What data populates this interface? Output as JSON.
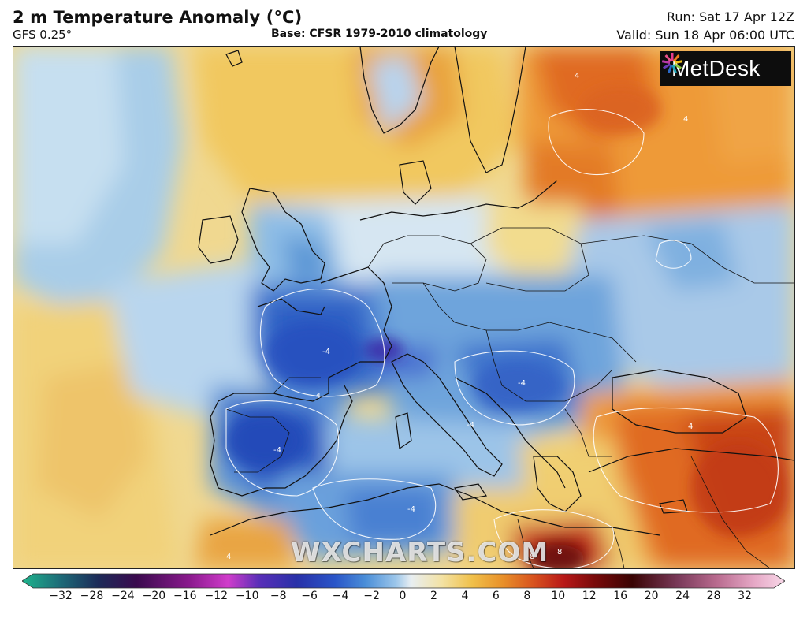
{
  "header": {
    "title": "2 m Temperature Anomaly (°C)",
    "model": "GFS 0.25°",
    "base": "Base: CFSR 1979-2010 climatology",
    "run": "Run: Sat 17 Apr 12Z",
    "valid": "Valid: Sun 18 Apr 06:00 UTC"
  },
  "logo": {
    "text": "MetDesk",
    "icon": "metdesk-sunburst-icon"
  },
  "watermark": "WXCHARTS.COM",
  "colorbar": {
    "ticks": [
      "−32",
      "−28",
      "−24",
      "−20",
      "−16",
      "−12",
      "−10",
      "−8",
      "−6",
      "−4",
      "−2",
      "0",
      "2",
      "4",
      "6",
      "8",
      "10",
      "12",
      "16",
      "20",
      "24",
      "28",
      "32"
    ],
    "colors": [
      "#1fb58d",
      "#1d6b78",
      "#1c2a58",
      "#3a0a4e",
      "#8b1a8e",
      "#d03ccb",
      "#5a2fb8",
      "#2830a8",
      "#2a55c8",
      "#4a8ed8",
      "#9cc6ea",
      "#e8eef2",
      "#f3e2a4",
      "#f0c04a",
      "#e8902a",
      "#d8531e",
      "#b81818",
      "#7a0a0a",
      "#3a0404",
      "#7a3a5a",
      "#b86a8e",
      "#e6a8c6",
      "#f8d8e8"
    ]
  },
  "map_labels": {
    "contour_value": "-4",
    "contour_value_warm": "4",
    "contour_value_hot": "8"
  }
}
